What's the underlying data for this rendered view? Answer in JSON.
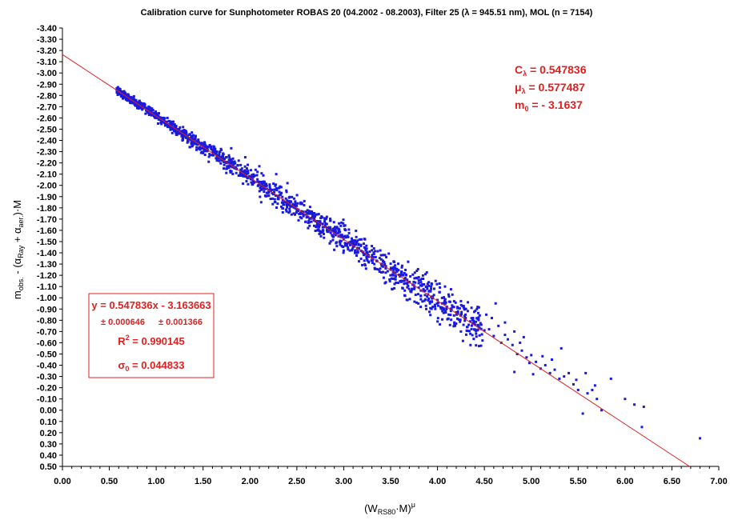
{
  "chart_data": {
    "type": "scatter",
    "title": "Calibration curve for Sunphotometer ROBAS 20 (04.2002 - 08.2003), Filter 25 (λ = 945.51 nm), MOL (n = 7154)",
    "xlabel": "(W_RS80·M)^μ",
    "ylabel": "m_obs. - (α_Ray + α_aer.)·M",
    "xlim": [
      0.0,
      7.0
    ],
    "ylim": [
      0.5,
      -3.4
    ],
    "y_inverted": true,
    "x_ticks": [
      "0.00",
      "0.50",
      "1.00",
      "1.50",
      "2.00",
      "2.50",
      "3.00",
      "3.50",
      "4.00",
      "4.50",
      "5.00",
      "5.50",
      "6.00",
      "6.50",
      "7.00"
    ],
    "y_ticks": [
      "-3.40",
      "-3.30",
      "-3.20",
      "-3.10",
      "-3.00",
      "-2.90",
      "-2.80",
      "-2.70",
      "-2.60",
      "-2.50",
      "-2.40",
      "-2.30",
      "-2.20",
      "-2.10",
      "-2.00",
      "-1.90",
      "-1.80",
      "-1.70",
      "-1.60",
      "-1.50",
      "-1.40",
      "-1.30",
      "-1.20",
      "-1.10",
      "-1.00",
      "-0.90",
      "-0.80",
      "-0.70",
      "-0.60",
      "-0.50",
      "-0.40",
      "-0.30",
      "-0.20",
      "-0.10",
      "0.00",
      "0.10",
      "0.20",
      "0.30",
      "0.40",
      "0.50"
    ],
    "grid": false,
    "colors": {
      "points": "#1a1adc",
      "fit_line": "#e02020",
      "annotation": "#e02020"
    },
    "fit": {
      "slope": 0.547836,
      "intercept": -3.163663
    },
    "series": [
      {
        "points": [
          [
            0.58,
            -2.85
          ],
          [
            0.62,
            -2.83
          ],
          [
            0.68,
            -2.8
          ],
          [
            0.72,
            -2.76
          ],
          [
            0.76,
            -2.77
          ],
          [
            0.8,
            -2.72
          ],
          [
            0.85,
            -2.7
          ],
          [
            0.9,
            -2.67
          ],
          [
            0.95,
            -2.64
          ],
          [
            1.0,
            -2.61
          ],
          [
            1.05,
            -2.59
          ],
          [
            1.1,
            -2.56
          ],
          [
            1.15,
            -2.52
          ],
          [
            1.2,
            -2.51
          ],
          [
            1.25,
            -2.47
          ],
          [
            1.3,
            -2.45
          ],
          [
            1.35,
            -2.42
          ],
          [
            1.4,
            -2.39
          ],
          [
            1.45,
            -2.37
          ],
          [
            1.5,
            -2.34
          ],
          [
            1.55,
            -2.31
          ],
          [
            1.6,
            -2.27
          ],
          [
            1.65,
            -2.26
          ],
          [
            1.7,
            -2.23
          ],
          [
            1.75,
            -2.2
          ],
          [
            1.8,
            -2.17
          ],
          [
            1.85,
            -2.15
          ],
          [
            1.9,
            -2.12
          ],
          [
            1.95,
            -2.09
          ],
          [
            2.0,
            -2.07
          ],
          [
            2.05,
            -2.03
          ],
          [
            2.1,
            -2.01
          ],
          [
            2.15,
            -1.98
          ],
          [
            2.2,
            -1.96
          ],
          [
            2.25,
            -1.93
          ],
          [
            2.3,
            -1.9
          ],
          [
            2.35,
            -1.87
          ],
          [
            2.4,
            -1.85
          ],
          [
            2.45,
            -1.82
          ],
          [
            2.5,
            -1.79
          ],
          [
            2.55,
            -1.77
          ],
          [
            2.6,
            -1.74
          ],
          [
            2.65,
            -1.71
          ],
          [
            2.7,
            -1.68
          ],
          [
            2.75,
            -1.66
          ],
          [
            2.8,
            -1.63
          ],
          [
            2.85,
            -1.6
          ],
          [
            2.9,
            -1.57
          ],
          [
            2.95,
            -1.55
          ],
          [
            3.0,
            -1.52
          ],
          [
            3.05,
            -1.49
          ],
          [
            3.1,
            -1.47
          ],
          [
            3.15,
            -1.44
          ],
          [
            3.2,
            -1.41
          ],
          [
            3.25,
            -1.39
          ],
          [
            3.3,
            -1.36
          ],
          [
            3.35,
            -1.33
          ],
          [
            3.4,
            -1.3
          ],
          [
            3.45,
            -1.28
          ],
          [
            3.5,
            -1.25
          ],
          [
            3.55,
            -1.22
          ],
          [
            3.6,
            -1.2
          ],
          [
            3.65,
            -1.17
          ],
          [
            3.7,
            -1.14
          ],
          [
            3.75,
            -1.11
          ],
          [
            3.8,
            -1.09
          ],
          [
            3.85,
            -1.06
          ],
          [
            3.9,
            -1.03
          ],
          [
            3.95,
            -1.01
          ],
          [
            4.0,
            -0.98
          ],
          [
            4.05,
            -0.95
          ],
          [
            4.1,
            -0.92
          ],
          [
            4.15,
            -0.9
          ],
          [
            4.2,
            -0.87
          ],
          [
            4.25,
            -0.84
          ],
          [
            4.3,
            -0.82
          ],
          [
            4.35,
            -0.79
          ],
          [
            4.4,
            -0.76
          ],
          [
            4.45,
            -0.73
          ],
          [
            4.5,
            -0.71
          ],
          [
            0.7,
            -2.81
          ],
          [
            0.92,
            -2.7
          ],
          [
            1.12,
            -2.6
          ],
          [
            1.38,
            -2.47
          ],
          [
            1.62,
            -2.34
          ],
          [
            1.88,
            -2.22
          ],
          [
            2.08,
            -2.12
          ],
          [
            2.32,
            -1.99
          ],
          [
            2.58,
            -1.86
          ],
          [
            2.82,
            -1.72
          ],
          [
            1.02,
            -2.55
          ],
          [
            1.28,
            -2.4
          ],
          [
            1.48,
            -2.29
          ],
          [
            1.72,
            -2.15
          ],
          [
            1.98,
            -2.01
          ],
          [
            2.22,
            -1.88
          ],
          [
            2.48,
            -1.74
          ],
          [
            2.72,
            -1.6
          ],
          [
            2.98,
            -1.46
          ],
          [
            3.22,
            -1.33
          ],
          [
            1.8,
            -2.33
          ],
          [
            1.95,
            -2.25
          ],
          [
            2.1,
            -2.17
          ],
          [
            2.28,
            -2.1
          ],
          [
            2.4,
            -2.02
          ],
          [
            2.12,
            -1.85
          ],
          [
            2.35,
            -1.76
          ],
          [
            2.62,
            -1.62
          ],
          [
            1.56,
            -2.21
          ],
          [
            1.36,
            -2.34
          ],
          [
            3.42,
            -1.38
          ],
          [
            3.62,
            -1.27
          ],
          [
            3.82,
            -1.16
          ],
          [
            4.02,
            -1.05
          ],
          [
            3.52,
            -1.17
          ],
          [
            3.72,
            -1.06
          ],
          [
            3.92,
            -0.95
          ],
          [
            4.12,
            -0.85
          ],
          [
            4.32,
            -0.74
          ],
          [
            3.3,
            -1.46
          ],
          [
            4.55,
            -0.72
          ],
          [
            4.6,
            -0.66
          ],
          [
            4.68,
            -0.6
          ],
          [
            4.72,
            -0.67
          ],
          [
            4.8,
            -0.58
          ],
          [
            4.85,
            -0.5
          ],
          [
            4.9,
            -0.53
          ],
          [
            4.95,
            -0.47
          ],
          [
            5.0,
            -0.49
          ],
          [
            5.05,
            -0.43
          ],
          [
            5.1,
            -0.37
          ],
          [
            5.15,
            -0.4
          ],
          [
            5.2,
            -0.33
          ],
          [
            5.25,
            -0.36
          ],
          [
            5.3,
            -0.28
          ],
          [
            5.35,
            -0.3
          ],
          [
            5.45,
            -0.23
          ],
          [
            5.5,
            -0.18
          ],
          [
            5.6,
            -0.15
          ],
          [
            5.7,
            -0.1
          ],
          [
            4.58,
            -0.82
          ],
          [
            4.65,
            -0.75
          ],
          [
            4.75,
            -0.63
          ],
          [
            4.82,
            -0.7
          ],
          [
            4.88,
            -0.6
          ],
          [
            4.98,
            -0.42
          ],
          [
            5.12,
            -0.48
          ],
          [
            5.22,
            -0.45
          ],
          [
            5.32,
            -0.55
          ],
          [
            5.4,
            -0.33
          ],
          [
            4.42,
            -0.9
          ],
          [
            4.48,
            -0.62
          ],
          [
            4.35,
            -0.68
          ],
          [
            4.25,
            -0.97
          ],
          [
            4.18,
            -0.78
          ],
          [
            4.08,
            -1.1
          ],
          [
            3.98,
            -1.15
          ],
          [
            3.88,
            -0.9
          ],
          [
            3.78,
            -1.24
          ],
          [
            3.68,
            -0.98
          ],
          [
            5.55,
            0.03
          ],
          [
            5.75,
            0.0
          ],
          [
            5.85,
            -0.28
          ],
          [
            6.0,
            -0.1
          ],
          [
            6.1,
            -0.05
          ],
          [
            6.2,
            -0.03
          ],
          [
            6.18,
            0.15
          ],
          [
            5.65,
            -0.18
          ],
          [
            4.82,
            -0.34
          ],
          [
            6.8,
            0.25
          ],
          [
            5.58,
            -0.33
          ],
          [
            5.48,
            -0.27
          ],
          [
            5.02,
            -0.32
          ],
          [
            5.68,
            -0.22
          ],
          [
            4.92,
            -0.65
          ],
          [
            4.72,
            -0.78
          ],
          [
            4.62,
            -0.95
          ],
          [
            4.52,
            -0.85
          ]
        ]
      }
    ]
  },
  "annotations": {
    "c_label": "C",
    "c_sub": "λ",
    "c_value": " = 0.547836",
    "mu_label": "μ",
    "mu_sub": "λ",
    "mu_value": " = 0.577487",
    "m0_label": "m",
    "m0_sub": "0",
    "m0_value": " = - 3.1637"
  },
  "fit_box": {
    "equation": "y = 0.547836x - 3.163663",
    "err_slope": "± 0.000646",
    "err_intercept": "± 0.001366",
    "r2_label": "R",
    "r2_sup": "2",
    "r2_value": " = 0.990145",
    "sigma_label": "σ",
    "sigma_sub": "0",
    "sigma_value": " = 0.044833"
  },
  "axis_text": {
    "x_main": "(W",
    "x_sub": "RS80",
    "x_mid": "·M)",
    "x_sup": "μ",
    "y_main": "m",
    "y_sub1": "obs.",
    "y_mid": " - (",
    "y_alpha1": "α",
    "y_sub2": "Ray",
    "y_plus": " + ",
    "y_alpha2": "α",
    "y_sub3": "aer.",
    "y_end": ")·M"
  }
}
